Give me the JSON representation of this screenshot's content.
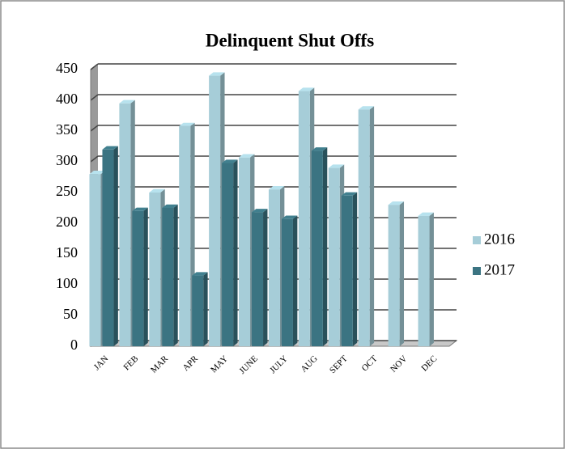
{
  "chart_data": {
    "type": "bar3d",
    "title": "Delinquent Shut Offs",
    "categories": [
      "JAN",
      "FEB",
      "MAR",
      "APR",
      "MAY",
      "JUNE",
      "JULY",
      "AUG",
      "SEPT",
      "OCT",
      "NOV",
      "DEC"
    ],
    "series": [
      {
        "name": "2016",
        "color": "#a6cdd8",
        "values": [
          280,
          395,
          250,
          358,
          440,
          307,
          255,
          415,
          290,
          385,
          230,
          212
        ]
      },
      {
        "name": "2017",
        "color": "#3b7482",
        "values": [
          320,
          220,
          225,
          115,
          298,
          218,
          207,
          318,
          245,
          null,
          null,
          null
        ]
      }
    ],
    "ylim": [
      0,
      450
    ],
    "yticks": [
      0,
      50,
      100,
      150,
      200,
      250,
      300,
      350,
      400,
      450
    ],
    "grid": true,
    "legend": "right"
  }
}
